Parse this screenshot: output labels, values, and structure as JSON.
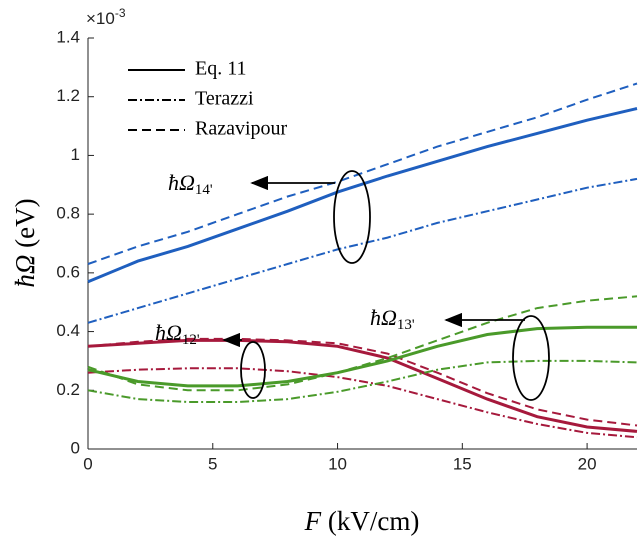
{
  "chart_data": {
    "type": "line",
    "xlabel": {
      "symbol": "F",
      "unit": "(kV/cm)"
    },
    "ylabel": {
      "symbol": "ħΩ",
      "unit": "(eV)"
    },
    "y_multiplier": {
      "base": "×10",
      "exponent": "-3"
    },
    "xlim": [
      0,
      22
    ],
    "ylim": [
      0,
      1.4
    ],
    "xticks": [
      0,
      5,
      10,
      15,
      20
    ],
    "yticks": [
      0,
      0.2,
      0.4,
      0.6,
      0.8,
      1,
      1.2,
      1.4
    ],
    "legend_position": "upper left",
    "legend": [
      {
        "name": "Eq. 11",
        "dash": "solid"
      },
      {
        "name": "Terazzi",
        "dash": "dashdot"
      },
      {
        "name": "Razavipour",
        "dash": "dashed"
      }
    ],
    "x": [
      0,
      2,
      4,
      6,
      8,
      10,
      12,
      14,
      16,
      18,
      20,
      22
    ],
    "groups": [
      {
        "symbol": "ħΩ",
        "subscript": "14'",
        "color": "#1f5fbf",
        "lines": [
          {
            "dash": "solid",
            "values": [
              0.57,
              0.64,
              0.69,
              0.75,
              0.81,
              0.875,
              0.93,
              0.98,
              1.03,
              1.075,
              1.12,
              1.16
            ]
          },
          {
            "dash": "dashdot",
            "values": [
              0.43,
              0.48,
              0.53,
              0.58,
              0.63,
              0.68,
              0.72,
              0.77,
              0.81,
              0.85,
              0.89,
              0.92
            ]
          },
          {
            "dash": "dashed",
            "values": [
              0.63,
              0.69,
              0.74,
              0.8,
              0.86,
              0.91,
              0.97,
              1.03,
              1.08,
              1.13,
              1.19,
              1.245
            ]
          }
        ]
      },
      {
        "symbol": "ħΩ",
        "subscript": "12'",
        "color": "#a6193c",
        "lines": [
          {
            "dash": "solid",
            "values": [
              0.35,
              0.36,
              0.37,
              0.37,
              0.365,
              0.35,
              0.31,
              0.24,
              0.17,
              0.11,
              0.075,
              0.06
            ]
          },
          {
            "dash": "dashdot",
            "values": [
              0.26,
              0.27,
              0.275,
              0.275,
              0.265,
              0.245,
              0.215,
              0.17,
              0.125,
              0.085,
              0.055,
              0.04
            ]
          },
          {
            "dash": "dashed",
            "values": [
              0.35,
              0.365,
              0.375,
              0.375,
              0.37,
              0.36,
              0.325,
              0.26,
              0.19,
              0.135,
              0.1,
              0.08
            ]
          }
        ]
      },
      {
        "symbol": "ħΩ",
        "subscript": "13'",
        "color": "#4a9a2a",
        "lines": [
          {
            "dash": "solid",
            "values": [
              0.27,
              0.23,
              0.215,
              0.215,
              0.23,
              0.26,
              0.3,
              0.35,
              0.39,
              0.41,
              0.415,
              0.415
            ]
          },
          {
            "dash": "dashdot",
            "values": [
              0.2,
              0.17,
              0.16,
              0.16,
              0.17,
              0.195,
              0.23,
              0.27,
              0.295,
              0.3,
              0.3,
              0.295
            ]
          },
          {
            "dash": "dashed",
            "values": [
              0.28,
              0.22,
              0.2,
              0.2,
              0.22,
              0.26,
              0.31,
              0.37,
              0.43,
              0.48,
              0.505,
              0.52
            ]
          }
        ]
      }
    ]
  }
}
